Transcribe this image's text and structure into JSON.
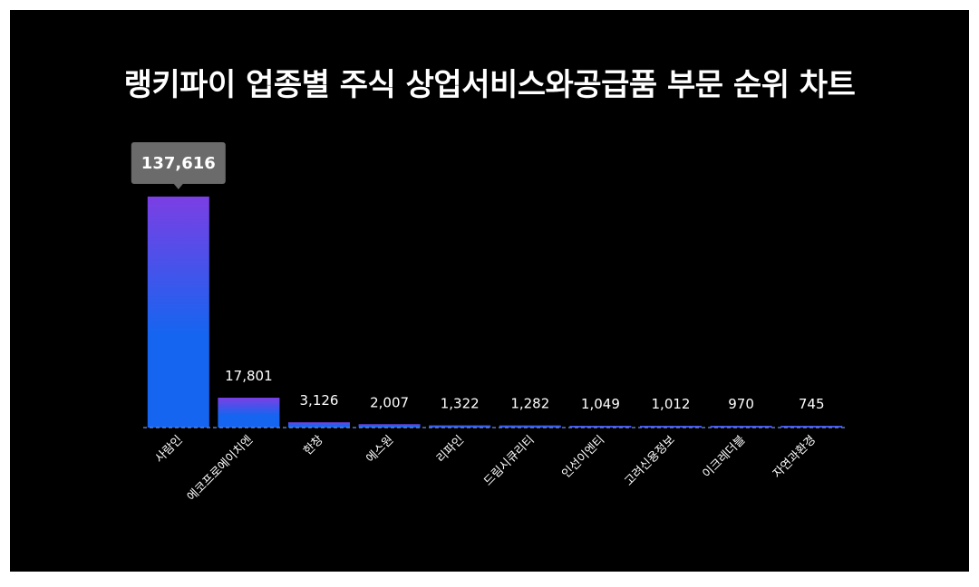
{
  "chart_data": {
    "type": "bar",
    "title": "랭키파이 업종별 주식 상업서비스와공급품 부문 순위 차트",
    "categories": [
      "사람인",
      "에코프로에이치엔",
      "한창",
      "에스원",
      "리파인",
      "드림시큐리티",
      "인선이엔티",
      "고려신용정보",
      "이크레더블",
      "자연과환경"
    ],
    "values": [
      137616,
      17801,
      3126,
      2007,
      1322,
      1282,
      1049,
      1012,
      970,
      745
    ],
    "value_labels": [
      "137,616",
      "17,801",
      "3,126",
      "2,007",
      "1,322",
      "1,282",
      "1,049",
      "1,012",
      "970",
      "745"
    ],
    "xlabel": "",
    "ylabel": "",
    "ylim": [
      0,
      137616
    ],
    "grid": false,
    "highlighted_index": 0,
    "colors": {
      "background": "#000000",
      "frame": "#ffffff",
      "bar_top": "#7b3fe4",
      "bar_bottom": "#1565f0",
      "baseline": "#6f8fd8",
      "tooltip": "#6b6b6b",
      "text": "#ffffff"
    }
  }
}
